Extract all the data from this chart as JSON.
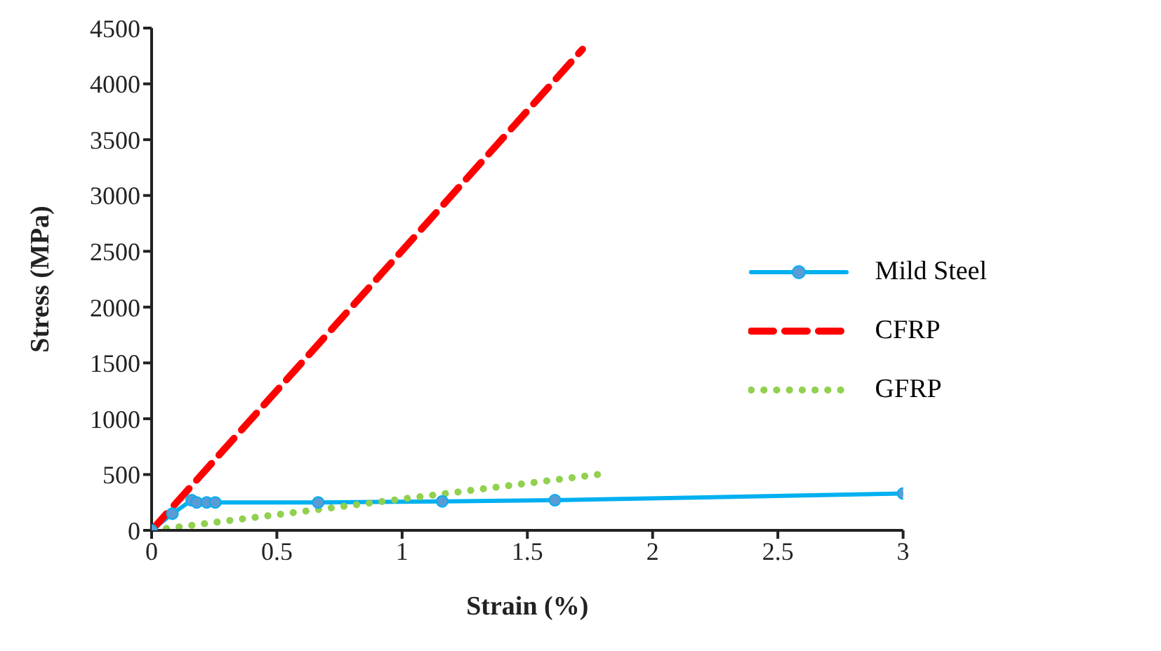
{
  "chart_data": {
    "type": "line",
    "xlabel": "Strain (%)",
    "ylabel": "Stress (MPa)",
    "xlim": [
      0,
      3
    ],
    "xticks": [
      0,
      0.5,
      1,
      1.5,
      2,
      2.5,
      3
    ],
    "ylim": [
      0,
      4500
    ],
    "yticks": [
      0,
      500,
      1000,
      1500,
      2000,
      2500,
      3000,
      3500,
      4000,
      4500
    ],
    "grid": false,
    "legend": "right",
    "series": [
      {
        "name": "Mild Steel",
        "color": "#00b0f0",
        "marker": "circle",
        "line_style": "solid",
        "x": [
          0,
          0.083,
          0.16,
          0.18,
          0.22,
          0.254,
          0.665,
          1.16,
          1.61,
          3
        ],
        "values": [
          0,
          150,
          270,
          250,
          250,
          250,
          250,
          260,
          270,
          330
        ]
      },
      {
        "name": "CFRP",
        "color": "#ff0000",
        "marker": "none",
        "line_style": "dashed",
        "x": [
          0,
          1.72
        ],
        "values": [
          0,
          4310
        ]
      },
      {
        "name": "GFRP",
        "color": "#92d050",
        "marker": "none",
        "line_style": "dotted",
        "x": [
          1.78,
          0
        ],
        "values": [
          500,
          0
        ]
      }
    ]
  }
}
